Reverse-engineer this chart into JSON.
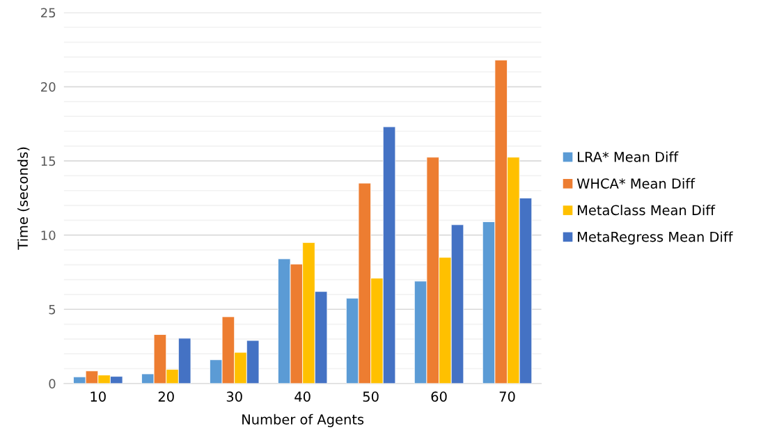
{
  "chart_data": {
    "type": "bar",
    "xlabel": "Number of Agents",
    "ylabel": "Time (seconds)",
    "categories": [
      "10",
      "20",
      "30",
      "40",
      "50",
      "60",
      "70"
    ],
    "series": [
      {
        "name": "LRA* Mean Diff",
        "color": "#5b9bd5",
        "values": [
          0.45,
          0.65,
          1.6,
          8.4,
          5.75,
          6.9,
          10.9
        ]
      },
      {
        "name": "WHCA* Mean Diff",
        "color": "#ed7d31",
        "values": [
          0.85,
          3.3,
          4.5,
          8.05,
          13.5,
          15.25,
          21.8
        ]
      },
      {
        "name": "MetaClass Mean Diff",
        "color": "#ffc000",
        "values": [
          0.57,
          0.95,
          2.1,
          9.5,
          7.1,
          8.5,
          15.25
        ]
      },
      {
        "name": "MetaRegress Mean Diff",
        "color": "#4472c4",
        "values": [
          0.48,
          3.05,
          2.9,
          6.2,
          17.3,
          10.7,
          12.5
        ]
      }
    ],
    "ylim": [
      0,
      25
    ],
    "yticks": [
      0,
      {
        "value": 1,
        "label": null
      },
      {
        "value": 2,
        "label": null
      },
      {
        "value": 3,
        "label": null
      },
      {
        "value": 4,
        "label": null
      },
      5,
      {
        "value": 6,
        "label": null
      },
      {
        "value": 7,
        "label": null
      },
      {
        "value": 8,
        "label": null
      },
      {
        "value": 9,
        "label": null
      },
      10,
      {
        "value": 11,
        "label": null
      },
      {
        "value": 12,
        "label": null
      },
      {
        "value": 13,
        "label": null
      },
      {
        "value": 14,
        "label": null
      },
      15,
      {
        "value": 16,
        "label": null
      },
      {
        "value": 17,
        "label": null
      },
      {
        "value": 18,
        "label": null
      },
      {
        "value": 19,
        "label": null
      },
      20,
      {
        "value": 21,
        "label": null
      },
      {
        "value": 22,
        "label": null
      },
      {
        "value": 23,
        "label": null
      },
      {
        "value": 24,
        "label": null
      },
      25
    ],
    "grid": "y",
    "legend": "right"
  }
}
